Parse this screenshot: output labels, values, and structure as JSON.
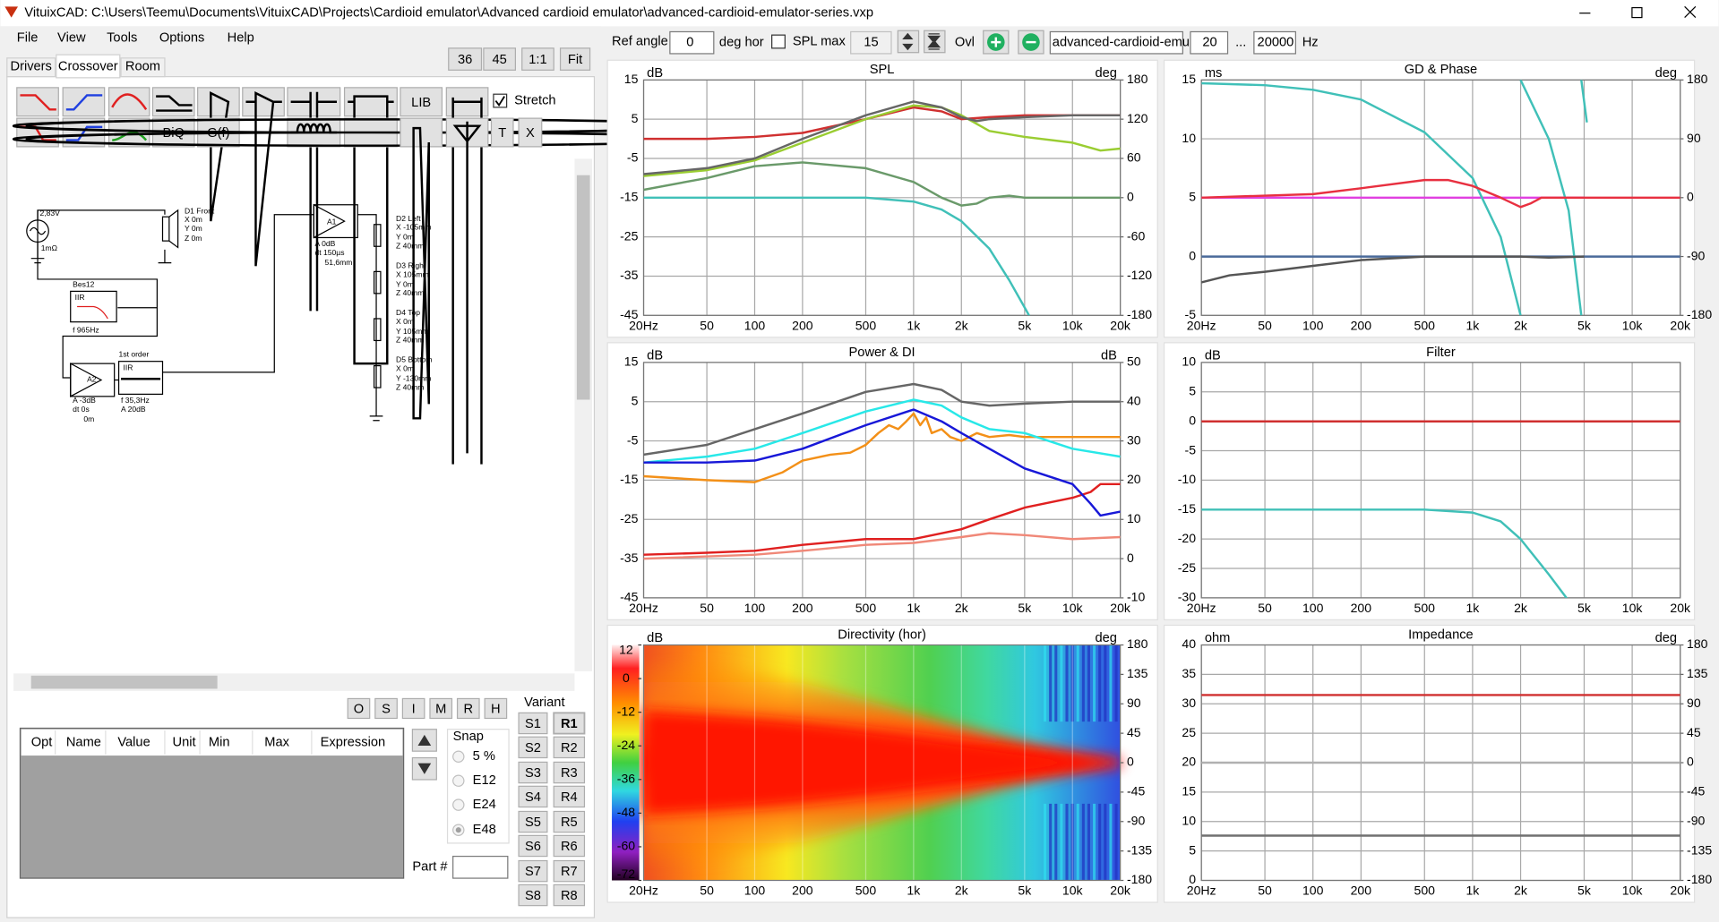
{
  "window": {
    "title": "VituixCAD: C:\\Users\\Teemu\\Documents\\VituixCAD\\Projects\\Cardioid emulator\\Advanced cardioid emulator\\advanced-cardioid-emulator-series.vxp"
  },
  "menu": [
    "File",
    "View",
    "Tools",
    "Options",
    "Help"
  ],
  "tabs": [
    "Drivers",
    "Crossover",
    "Room"
  ],
  "zoom": [
    "36",
    "45",
    "1:1",
    "Fit"
  ],
  "toolbar": {
    "lib": "LIB",
    "biq": "BiQ",
    "gf": "G(f)",
    "t": "T",
    "x": "X",
    "stretch": "Stretch"
  },
  "schematic": [
    "2,83V",
    "1mΩ",
    "D1 Front",
    "X 0m",
    "Y 0m",
    "Z 0m",
    "Bes12",
    "IIR",
    "f  965Hz",
    "A  0dB",
    "dt  150µs",
    "51,6mm",
    "D2 Left",
    "X -105mm",
    "Y 0m",
    "Z 40mm",
    "D3 Right",
    "X 105mm",
    "Y 0m",
    "Z 40mm",
    "D4 Top",
    "X 0m",
    "Y 105mm",
    "Z 40mm",
    "D5 Bottom",
    "X 0m",
    "Y -130mm",
    "Z 40mm",
    "1st order",
    "IIR",
    "f  35,3Hz",
    "A  20dB",
    "A  -3dB",
    "dt  0s",
    "0m",
    "A1",
    "A2"
  ],
  "opt_buttons": [
    "O",
    "S",
    "I",
    "M",
    "R",
    "H"
  ],
  "table_headers": [
    "Opt",
    "Name",
    "Value",
    "Unit",
    "Min",
    "Max",
    "Expression"
  ],
  "snap": {
    "title": "Snap",
    "options": [
      "5 %",
      "E12",
      "E24",
      "E48"
    ]
  },
  "part": "Part #",
  "variant": {
    "title": "Variant",
    "s": [
      "S1",
      "S2",
      "S3",
      "S4",
      "S5",
      "S6",
      "S7",
      "S8"
    ],
    "r": [
      "R1",
      "R2",
      "R3",
      "R4",
      "R5",
      "R6",
      "R7",
      "R8"
    ]
  },
  "controls": {
    "ref_angle": "Ref angle",
    "ref_value": "0",
    "deg_hor": "deg hor",
    "spl_max": "SPL max",
    "spl_value": "15",
    "ovl": "Ovl",
    "name": "advanced-cardioid-emul",
    "f_min": "20",
    "dots": "...",
    "f_max": "20000",
    "hz": "Hz"
  },
  "chart_data": [
    {
      "type": "line",
      "title": "SPL",
      "y_unit": "dB",
      "y2_unit": "deg",
      "log_x": true,
      "grid": true,
      "xlim": [
        20,
        20000
      ],
      "xticks": [
        {
          "value": 20,
          "label": "20Hz"
        },
        50,
        100,
        200,
        500,
        {
          "value": 1000,
          "label": "1k"
        },
        {
          "value": 2000,
          "label": "2k"
        },
        {
          "value": 5000,
          "label": "5k"
        },
        {
          "value": 10000,
          "label": "10k"
        },
        {
          "value": 20000,
          "label": "20k"
        }
      ],
      "ylim": [
        -45,
        15
      ],
      "yticks": [
        15,
        5,
        -5,
        -15,
        -25,
        -35,
        -45
      ],
      "y2lim": [
        -180,
        180
      ],
      "y2ticks": [
        180,
        120,
        60,
        0,
        -60,
        -120,
        -180
      ],
      "series": [
        {
          "color": "#6a9a6a",
          "x": [
            20,
            50,
            100,
            200,
            500,
            1000,
            1500,
            2000,
            2500,
            3000,
            4000,
            5000,
            10000,
            20000
          ],
          "values": [
            -13,
            -10,
            -7,
            -6,
            -7.5,
            -11,
            -15,
            -17,
            -16.5,
            -15,
            -14.5,
            -15,
            -15,
            -15
          ]
        },
        {
          "color": "#40c0b8",
          "x": [
            20,
            100,
            500,
            1000,
            1500,
            2000,
            3000,
            4000,
            5000,
            5500
          ],
          "values": [
            -15,
            -15,
            -15,
            -16,
            -18,
            -21,
            -28,
            -36,
            -43,
            -46
          ]
        },
        {
          "color": "#d03030",
          "x": [
            20,
            50,
            100,
            200,
            500,
            1000,
            1500,
            2000,
            3000,
            5000,
            10000,
            20000
          ],
          "values": [
            0,
            0,
            0.5,
            1.5,
            5,
            8,
            7,
            5,
            5.5,
            6,
            6,
            6
          ]
        },
        {
          "color": "#9acd32",
          "x": [
            20,
            50,
            100,
            200,
            500,
            1000,
            1500,
            2000,
            3000,
            5000,
            10000,
            15000,
            20000
          ],
          "values": [
            -9.5,
            -8,
            -5.5,
            -1,
            5,
            8.5,
            8,
            6,
            2,
            0.5,
            -1,
            -3,
            -2.5
          ]
        },
        {
          "color": "#666666",
          "x": [
            20,
            50,
            100,
            200,
            500,
            1000,
            1500,
            2000,
            2500,
            3000,
            5000,
            10000,
            20000
          ],
          "values": [
            -9,
            -7.5,
            -5,
            0,
            6,
            9.5,
            8,
            5.5,
            4.5,
            5,
            5.5,
            6,
            6
          ]
        }
      ]
    },
    {
      "type": "line",
      "title": "GD & Phase",
      "y_unit": "ms",
      "y2_unit": "deg",
      "log_x": true,
      "grid": true,
      "xlim": [
        20,
        20000
      ],
      "xticks": [
        {
          "value": 20,
          "label": "20Hz"
        },
        50,
        100,
        200,
        500,
        {
          "value": 1000,
          "label": "1k"
        },
        {
          "value": 2000,
          "label": "2k"
        },
        {
          "value": 5000,
          "label": "5k"
        },
        {
          "value": 10000,
          "label": "10k"
        },
        {
          "value": 20000,
          "label": "20k"
        }
      ],
      "ylim": [
        -5,
        15
      ],
      "yticks": [
        15,
        10,
        5,
        0,
        -5
      ],
      "y2lim": [
        -180,
        180
      ],
      "y2ticks": [
        180,
        90,
        0,
        -90,
        -180
      ],
      "series": [
        {
          "color": "#e040e0",
          "axis": "y2",
          "x": [
            20,
            5000
          ],
          "values": [
            0,
            0
          ]
        },
        {
          "color": "#4a6a9a",
          "x": [
            20,
            20000
          ],
          "values": [
            0,
            0
          ]
        },
        {
          "color": "#40c0b8",
          "axis": "y2",
          "x": [
            20,
            50,
            100,
            200,
            500,
            1000,
            1500,
            2000,
            2000,
            2000,
            3000,
            4000,
            4800,
            4800,
            4800,
            5200
          ],
          "values": [
            175,
            172,
            165,
            150,
            100,
            30,
            -60,
            -180,
            null,
            180,
            90,
            -20,
            -180,
            null,
            180,
            115
          ]
        },
        {
          "color": "#e83040",
          "x": [
            20,
            100,
            200,
            500,
            700,
            1000,
            1500,
            2000,
            2300,
            2700,
            3000,
            4000,
            20000
          ],
          "values": [
            5,
            5.3,
            5.8,
            6.5,
            6.5,
            6,
            5,
            4.2,
            4.5,
            5,
            5,
            5,
            5
          ]
        },
        {
          "color": "#555555",
          "x": [
            20,
            30,
            50,
            100,
            200,
            500,
            1000,
            2000,
            3000,
            5000
          ],
          "values": [
            -2.2,
            -1.6,
            -1.3,
            -0.8,
            -0.3,
            0,
            0,
            0,
            -0.1,
            0
          ]
        }
      ]
    },
    {
      "type": "line",
      "title": "Power & DI",
      "y_unit": "dB",
      "y2_unit": "dB",
      "log_x": true,
      "grid": true,
      "xlim": [
        20,
        20000
      ],
      "xticks": [
        {
          "value": 20,
          "label": "20Hz"
        },
        50,
        100,
        200,
        500,
        {
          "value": 1000,
          "label": "1k"
        },
        {
          "value": 2000,
          "label": "2k"
        },
        {
          "value": 5000,
          "label": "5k"
        },
        {
          "value": 10000,
          "label": "10k"
        },
        {
          "value": 20000,
          "label": "20k"
        }
      ],
      "ylim": [
        -45,
        15
      ],
      "yticks": [
        15,
        5,
        -5,
        -15,
        -25,
        -35,
        -45
      ],
      "y2lim": [
        -10,
        50
      ],
      "y2ticks": [
        50,
        40,
        30,
        20,
        10,
        0,
        -10
      ],
      "series": [
        {
          "color": "#f08878",
          "axis": "y2",
          "x": [
            20,
            100,
            200,
            500,
            1000,
            2000,
            3000,
            5000,
            10000,
            20000
          ],
          "values": [
            0,
            1,
            2,
            3.5,
            4,
            5.5,
            6.5,
            6,
            5,
            5.5
          ]
        },
        {
          "color": "#e02020",
          "axis": "y2",
          "x": [
            20,
            50,
            100,
            200,
            500,
            1000,
            2000,
            3000,
            5000,
            10000,
            13000,
            15000,
            20000
          ],
          "values": [
            1,
            1.5,
            2,
            3.5,
            5,
            5,
            7.5,
            10,
            13,
            15.5,
            17,
            19,
            19
          ]
        },
        {
          "color": "#f39018",
          "x": [
            20,
            50,
            100,
            150,
            200,
            300,
            400,
            500,
            600,
            700,
            800,
            900,
            1000,
            1100,
            1200,
            1300,
            1500,
            1700,
            2000,
            2500,
            3000,
            4000,
            5000,
            10000,
            20000
          ],
          "values": [
            -14,
            -15,
            -15.5,
            -13,
            -10,
            -8.5,
            -8,
            -6,
            -3,
            -1,
            -2,
            0,
            2,
            -1,
            1,
            -3,
            -2,
            -4,
            -5,
            -3,
            -4,
            -3.5,
            -4,
            -4,
            -4
          ]
        },
        {
          "color": "#28e8e8",
          "x": [
            20,
            50,
            100,
            200,
            500,
            1000,
            1500,
            2000,
            3000,
            5000,
            10000,
            20000
          ],
          "values": [
            -10.5,
            -9,
            -7,
            -3,
            2.5,
            5.5,
            4,
            1,
            -2,
            -3,
            -7,
            -9
          ]
        },
        {
          "color": "#1818d8",
          "x": [
            20,
            50,
            100,
            200,
            500,
            1000,
            1500,
            2000,
            3000,
            5000,
            10000,
            13000,
            15000,
            20000
          ],
          "values": [
            -10.5,
            -10.5,
            -10,
            -7,
            -1,
            3,
            0,
            -3,
            -7,
            -12,
            -16,
            -21,
            -24,
            -23
          ]
        },
        {
          "color": "#666666",
          "x": [
            20,
            50,
            100,
            200,
            500,
            1000,
            1500,
            2000,
            3000,
            5000,
            10000,
            20000
          ],
          "values": [
            -8.5,
            -6,
            -2,
            2,
            7.5,
            9.5,
            8,
            5,
            4,
            4.5,
            5,
            5
          ]
        }
      ]
    },
    {
      "type": "line",
      "title": "Filter",
      "y_unit": "dB",
      "log_x": true,
      "grid": true,
      "xlim": [
        20,
        20000
      ],
      "xticks": [
        {
          "value": 20,
          "label": "20Hz"
        },
        50,
        100,
        200,
        500,
        {
          "value": 1000,
          "label": "1k"
        },
        {
          "value": 2000,
          "label": "2k"
        },
        {
          "value": 5000,
          "label": "5k"
        },
        {
          "value": 10000,
          "label": "10k"
        },
        {
          "value": 20000,
          "label": "20k"
        }
      ],
      "ylim": [
        -30,
        10
      ],
      "yticks": [
        10,
        5,
        0,
        -5,
        -10,
        -15,
        -20,
        -25,
        -30
      ],
      "series": [
        {
          "color": "#d03030",
          "x": [
            20,
            20000
          ],
          "values": [
            0,
            0
          ]
        },
        {
          "color": "#40c0b8",
          "x": [
            20,
            500,
            1000,
            1500,
            2000,
            3000,
            4000
          ],
          "values": [
            -15,
            -15,
            -15.5,
            -17,
            -20,
            -26,
            -30.5
          ]
        }
      ]
    },
    {
      "type": "heatmap",
      "title": "Directivity (hor)",
      "y_unit": "dB",
      "y2_unit": "deg",
      "log_x": true,
      "grid": true,
      "xlim": [
        20,
        20000
      ],
      "xticks": [
        {
          "value": 20,
          "label": "20Hz"
        },
        50,
        100,
        200,
        500,
        {
          "value": 1000,
          "label": "1k"
        },
        {
          "value": 2000,
          "label": "2k"
        },
        {
          "value": 5000,
          "label": "5k"
        },
        {
          "value": 10000,
          "label": "10k"
        },
        {
          "value": 20000,
          "label": "20k"
        }
      ],
      "ylim": [
        -72,
        12
      ],
      "yticks": [
        12,
        0,
        -12,
        -24,
        -36,
        -48,
        -60,
        -72
      ],
      "y2lim": [
        -180,
        180
      ],
      "y2ticks": [
        180,
        135,
        90,
        45,
        0,
        -45,
        -90,
        -135,
        -180
      ]
    },
    {
      "type": "line",
      "title": "Impedance",
      "y_unit": "ohm",
      "y2_unit": "deg",
      "log_x": true,
      "grid": true,
      "xlim": [
        20,
        20000
      ],
      "xticks": [
        {
          "value": 20,
          "label": "20Hz"
        },
        50,
        100,
        200,
        500,
        {
          "value": 1000,
          "label": "1k"
        },
        {
          "value": 2000,
          "label": "2k"
        },
        {
          "value": 5000,
          "label": "5k"
        },
        {
          "value": 10000,
          "label": "10k"
        },
        {
          "value": 20000,
          "label": "20k"
        }
      ],
      "ylim": [
        0,
        40
      ],
      "yticks": [
        40,
        35,
        30,
        25,
        20,
        15,
        10,
        5,
        0
      ],
      "y2lim": [
        -180,
        180
      ],
      "y2ticks": [
        180,
        135,
        90,
        45,
        0,
        -45,
        -90,
        -135,
        -180
      ],
      "series": [
        {
          "color": "#b0b0b0",
          "axis": "y2",
          "x": [
            20,
            20000
          ],
          "values": [
            0,
            0
          ]
        },
        {
          "color": "#d03030",
          "x": [
            20,
            20000
          ],
          "values": [
            31.5,
            31.5
          ]
        },
        {
          "color": "#707070",
          "x": [
            20,
            20000
          ],
          "values": [
            7.6,
            7.6
          ]
        }
      ]
    }
  ]
}
